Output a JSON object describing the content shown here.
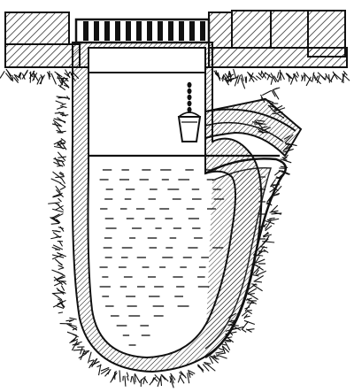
{
  "figure": {
    "background": "#ffffff",
    "ink": "#111111",
    "fill": "#ffffff",
    "parts": [
      {
        "id": "ground",
        "icon": "hatched-soil"
      },
      {
        "id": "paving",
        "icon": "stone-slabs"
      },
      {
        "id": "grate",
        "icon": "grate-cover"
      },
      {
        "id": "shaft",
        "icon": "masonry-shaft"
      },
      {
        "id": "cistern",
        "icon": "rounded-tank"
      },
      {
        "id": "water",
        "icon": "water-dashes"
      },
      {
        "id": "bucket",
        "icon": "bucket-on-chain"
      },
      {
        "id": "inlet-pipe",
        "icon": "inlet-pipe"
      }
    ]
  }
}
